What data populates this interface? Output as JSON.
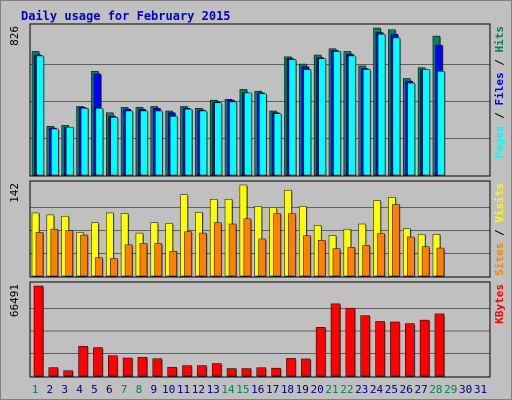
{
  "title": "Daily usage for February 2015",
  "colors": {
    "hits": "#00805c",
    "files": "#0000ff",
    "pages": "#00ffff",
    "visits": "#ffff00",
    "sites": "#ff8000",
    "kbytes": "#ff0000",
    "weekend_day": "#00805c",
    "weekday": "#000080"
  },
  "chart_data": [
    {
      "type": "bar",
      "panel": "top",
      "ymax_label": "826",
      "categories": [
        "1",
        "2",
        "3",
        "4",
        "5",
        "6",
        "7",
        "8",
        "9",
        "10",
        "11",
        "12",
        "13",
        "14",
        "15",
        "16",
        "17",
        "18",
        "19",
        "20",
        "21",
        "22",
        "23",
        "24",
        "25",
        "26",
        "27",
        "28",
        "29",
        "30",
        "31"
      ],
      "weekend_days": [
        "1",
        "7",
        "8",
        "14",
        "15",
        "21",
        "22",
        "28",
        "29"
      ],
      "legend": [
        "Pages",
        "Files",
        "Hits"
      ],
      "series": [
        {
          "name": "Hits",
          "values": [
            685,
            270,
            275,
            380,
            575,
            345,
            375,
            375,
            380,
            355,
            380,
            370,
            415,
            420,
            475,
            465,
            355,
            655,
            615,
            665,
            700,
            685,
            605,
            815,
            805,
            535,
            595,
            770,
            0,
            0,
            0
          ]
        },
        {
          "name": "Files",
          "values": [
            665,
            260,
            265,
            375,
            560,
            325,
            365,
            365,
            370,
            345,
            370,
            360,
            405,
            415,
            455,
            455,
            345,
            645,
            600,
            650,
            690,
            670,
            590,
            790,
            780,
            520,
            585,
            720,
            0,
            0,
            0
          ]
        },
        {
          "name": "Pages",
          "values": [
            660,
            255,
            265,
            370,
            370,
            320,
            355,
            355,
            355,
            325,
            365,
            355,
            400,
            405,
            455,
            450,
            340,
            640,
            585,
            645,
            685,
            660,
            585,
            780,
            760,
            510,
            585,
            575,
            0,
            0,
            0
          ]
        }
      ]
    },
    {
      "type": "bar",
      "panel": "middle",
      "ymax_label": "142",
      "categories": [
        "1",
        "2",
        "3",
        "4",
        "5",
        "6",
        "7",
        "8",
        "9",
        "10",
        "11",
        "12",
        "13",
        "14",
        "15",
        "16",
        "17",
        "18",
        "19",
        "20",
        "21",
        "22",
        "23",
        "24",
        "25",
        "26",
        "27",
        "28",
        "29",
        "30",
        "31"
      ],
      "legend": [
        "Sites",
        "Visits"
      ],
      "series": [
        {
          "name": "Visits",
          "values": [
            97,
            94,
            92,
            67,
            82,
            97,
            96,
            66,
            82,
            81,
            125,
            98,
            118,
            118,
            140,
            107,
            105,
            132,
            107,
            78,
            62,
            72,
            80,
            116,
            121,
            73,
            64,
            64,
            0,
            0,
            0
          ]
        },
        {
          "name": "Sites",
          "values": [
            67,
            72,
            70,
            63,
            28,
            27,
            48,
            50,
            50,
            38,
            68,
            66,
            82,
            80,
            88,
            57,
            96,
            96,
            62,
            55,
            42,
            44,
            47,
            65,
            110,
            60,
            45,
            43,
            0,
            0,
            0
          ]
        }
      ]
    },
    {
      "type": "bar",
      "panel": "bottom",
      "ymax_label": "66491",
      "categories": [
        "1",
        "2",
        "3",
        "4",
        "5",
        "6",
        "7",
        "8",
        "9",
        "10",
        "11",
        "12",
        "13",
        "14",
        "15",
        "16",
        "17",
        "18",
        "19",
        "20",
        "21",
        "22",
        "23",
        "24",
        "25",
        "26",
        "27",
        "28",
        "29",
        "30",
        "31"
      ],
      "legend": [
        "KBytes"
      ],
      "series": [
        {
          "name": "KBytes",
          "values": [
            66491,
            6200,
            3900,
            22000,
            21000,
            15000,
            13300,
            13800,
            12800,
            6500,
            7700,
            7700,
            9200,
            5500,
            5500,
            6100,
            5800,
            13000,
            12600,
            36000,
            53300,
            50100,
            44600,
            40300,
            39900,
            38700,
            41300,
            45900,
            0,
            0,
            0
          ]
        }
      ]
    }
  ]
}
